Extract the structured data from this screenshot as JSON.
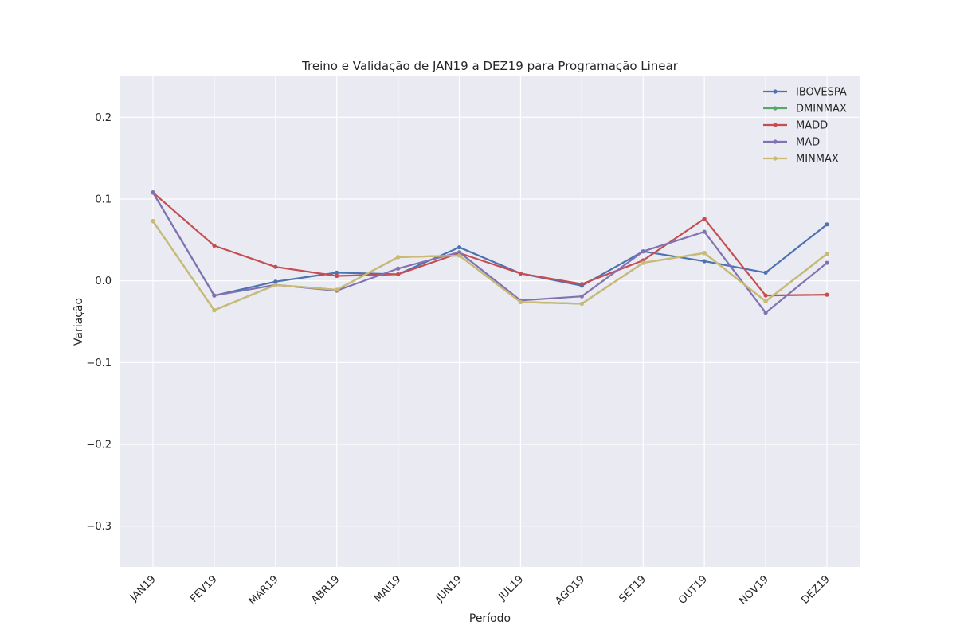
{
  "chart_data": {
    "type": "line",
    "title": "Treino e Validação de JAN19 a DEZ19 para Programação Linear",
    "xlabel": "Período",
    "ylabel": "Variação",
    "categories": [
      "JAN19",
      "FEV19",
      "MAR19",
      "ABR19",
      "MAI19",
      "JUN19",
      "JUL19",
      "AGO19",
      "SET19",
      "OUT19",
      "NOV19",
      "DEZ19"
    ],
    "ylim": [
      -0.35,
      0.25
    ],
    "yticks": [
      -0.3,
      -0.2,
      -0.1,
      0.0,
      0.1,
      0.2
    ],
    "ytick_labels": [
      "−0.3",
      "−0.2",
      "−0.1",
      "0.0",
      "0.1",
      "0.2"
    ],
    "grid": true,
    "legend_position": "top-right",
    "background": "#eaeaf2",
    "series": [
      {
        "name": "IBOVESPA",
        "color": "#4c72b0",
        "values": [
          0.108,
          -0.018,
          -0.001,
          0.01,
          0.008,
          0.041,
          0.009,
          -0.006,
          0.036,
          0.024,
          0.01,
          0.069
        ]
      },
      {
        "name": "DMINMAX",
        "color": "#55a868",
        "values": [
          0.073,
          -0.036,
          -0.005,
          -0.011,
          0.029,
          0.031,
          -0.026,
          -0.028,
          0.022,
          0.034,
          -0.025,
          0.033
        ]
      },
      {
        "name": "MADD",
        "color": "#c44e52",
        "values": [
          0.108,
          0.043,
          0.017,
          0.006,
          0.008,
          0.034,
          0.009,
          -0.004,
          0.025,
          0.076,
          -0.018,
          -0.017
        ]
      },
      {
        "name": "MAD",
        "color": "#8172b2",
        "values": [
          0.108,
          -0.018,
          -0.005,
          -0.012,
          0.015,
          0.035,
          -0.024,
          -0.019,
          0.036,
          0.06,
          -0.039,
          0.022
        ]
      },
      {
        "name": "MINMAX",
        "color": "#ccb974",
        "values": [
          0.073,
          -0.036,
          -0.005,
          -0.011,
          0.029,
          0.031,
          -0.026,
          -0.028,
          0.022,
          0.034,
          -0.025,
          0.033
        ]
      }
    ]
  }
}
